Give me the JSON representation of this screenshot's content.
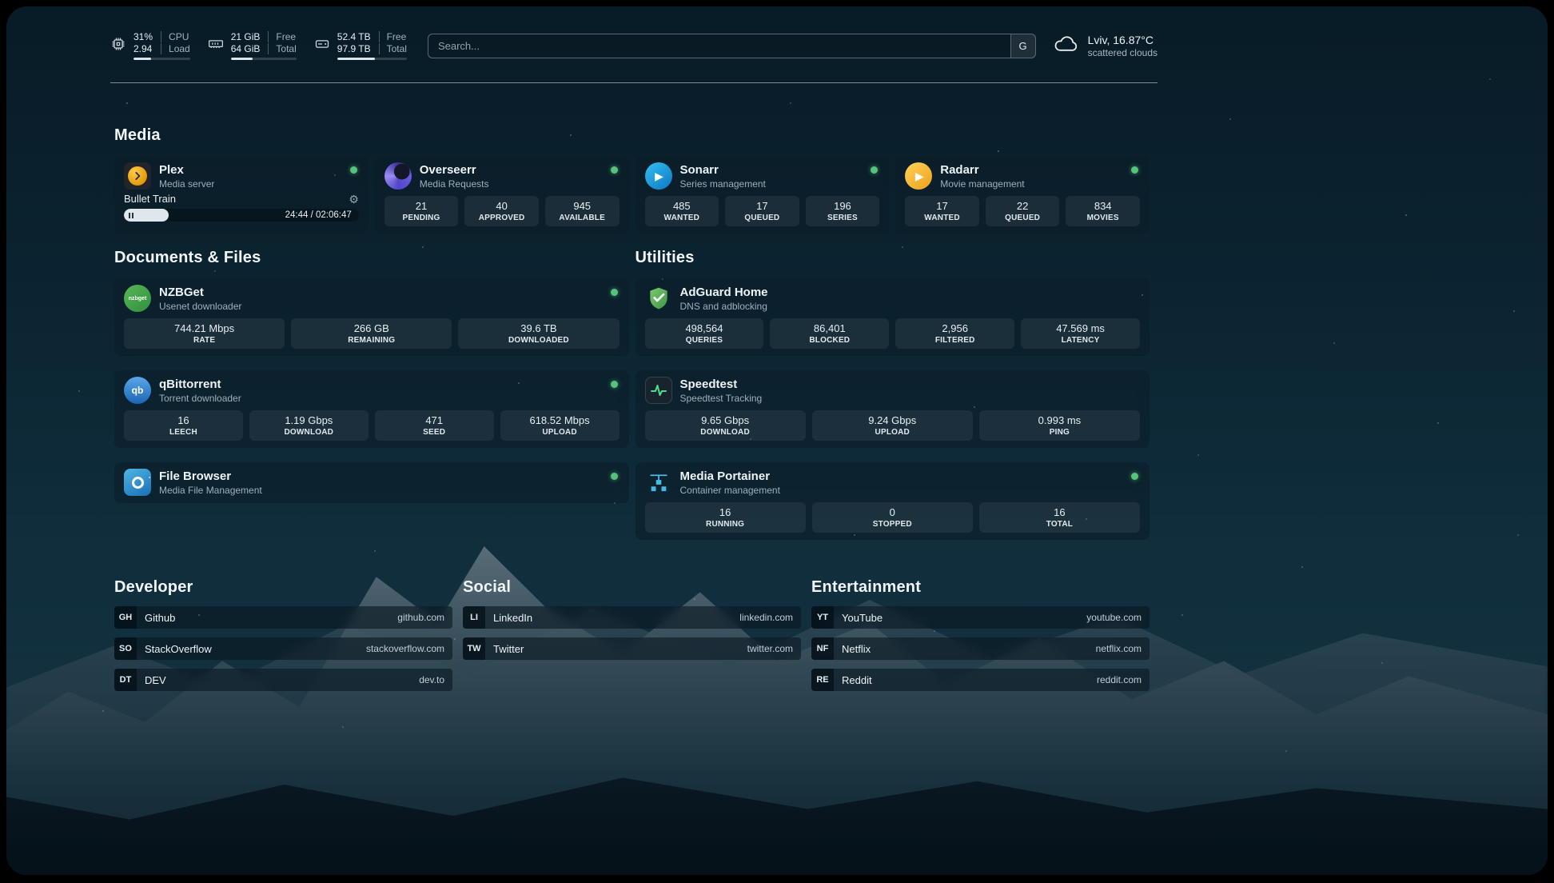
{
  "colors": {
    "online_green": "#57c279",
    "accent_blue": "#35bdf4"
  },
  "icons": {
    "topbar": [
      "cpu-icon",
      "ram-icon",
      "disk-icon",
      "search-engine-icon",
      "cloud-icon"
    ],
    "apps": [
      "plex-icon",
      "overseerr-icon",
      "sonarr-icon",
      "radarr-icon",
      "nzbget-icon",
      "qbittorrent-icon",
      "filebrowser-icon",
      "adguard-icon",
      "speedtest-icon",
      "portainer-icon"
    ],
    "misc": [
      "gear-icon",
      "pause-icon",
      "status-dot"
    ]
  },
  "topbar": {
    "cpu": {
      "value1": "31%",
      "label1": "CPU",
      "value2": "2.94",
      "label2": "Load",
      "progress": 31
    },
    "memory": {
      "value1": "21 GiB",
      "label1": "Free",
      "value2": "64 GiB",
      "label2": "Total",
      "progress": 33
    },
    "disk": {
      "value1": "52.4 TB",
      "label1": "Free",
      "value2": "97.9 TB",
      "label2": "Total",
      "progress": 54
    },
    "search": {
      "placeholder": "Search...",
      "engine_button": "G"
    },
    "weather": {
      "location": "Lviv, 16.87°C",
      "condition": "scattered clouds"
    }
  },
  "sections": {
    "media": {
      "title": "Media",
      "plex": {
        "name": "Plex",
        "subtitle": "Media server",
        "online": true,
        "now_playing": "Bullet Train",
        "time": "24:44 / 02:06:47",
        "progress": 19
      },
      "apps": [
        {
          "name": "Overseerr",
          "subtitle": "Media Requests",
          "online": true,
          "stats": [
            {
              "value": "21",
              "label": "PENDING"
            },
            {
              "value": "40",
              "label": "APPROVED"
            },
            {
              "value": "945",
              "label": "AVAILABLE"
            }
          ]
        },
        {
          "name": "Sonarr",
          "subtitle": "Series management",
          "online": true,
          "stats": [
            {
              "value": "485",
              "label": "WANTED"
            },
            {
              "value": "17",
              "label": "QUEUED"
            },
            {
              "value": "196",
              "label": "SERIES"
            }
          ]
        },
        {
          "name": "Radarr",
          "subtitle": "Movie management",
          "online": true,
          "stats": [
            {
              "value": "17",
              "label": "WANTED"
            },
            {
              "value": "22",
              "label": "QUEUED"
            },
            {
              "value": "834",
              "label": "MOVIES"
            }
          ]
        }
      ]
    },
    "documents": {
      "title": "Documents & Files",
      "apps": [
        {
          "name": "NZBGet",
          "subtitle": "Usenet downloader",
          "online": true,
          "stats": [
            {
              "value": "744.21 Mbps",
              "label": "RATE"
            },
            {
              "value": "266 GB",
              "label": "REMAINING"
            },
            {
              "value": "39.6 TB",
              "label": "DOWNLOADED"
            }
          ]
        },
        {
          "name": "qBittorrent",
          "subtitle": "Torrent downloader",
          "online": true,
          "stats": [
            {
              "value": "16",
              "label": "LEECH"
            },
            {
              "value": "1.19 Gbps",
              "label": "DOWNLOAD"
            },
            {
              "value": "471",
              "label": "SEED"
            },
            {
              "value": "618.52 Mbps",
              "label": "UPLOAD"
            }
          ]
        },
        {
          "name": "File Browser",
          "subtitle": "Media File Management",
          "online": true,
          "stats": []
        }
      ]
    },
    "utilities": {
      "title": "Utilities",
      "apps": [
        {
          "name": "AdGuard Home",
          "subtitle": "DNS and adblocking",
          "online": false,
          "stats": [
            {
              "value": "498,564",
              "label": "QUERIES"
            },
            {
              "value": "86,401",
              "label": "BLOCKED"
            },
            {
              "value": "2,956",
              "label": "FILTERED"
            },
            {
              "value": "47.569 ms",
              "label": "LATENCY"
            }
          ]
        },
        {
          "name": "Speedtest",
          "subtitle": "Speedtest Tracking",
          "online": false,
          "stats": [
            {
              "value": "9.65 Gbps",
              "label": "DOWNLOAD"
            },
            {
              "value": "9.24 Gbps",
              "label": "UPLOAD"
            },
            {
              "value": "0.993 ms",
              "label": "PING"
            }
          ]
        },
        {
          "name": "Media Portainer",
          "subtitle": "Container management",
          "online": true,
          "stats": [
            {
              "value": "16",
              "label": "RUNNING"
            },
            {
              "value": "0",
              "label": "STOPPED"
            },
            {
              "value": "16",
              "label": "TOTAL"
            }
          ]
        }
      ]
    },
    "bookmarks": [
      {
        "title": "Developer",
        "items": [
          {
            "abbr": "GH",
            "name": "Github",
            "url": "github.com"
          },
          {
            "abbr": "SO",
            "name": "StackOverflow",
            "url": "stackoverflow.com"
          },
          {
            "abbr": "DT",
            "name": "DEV",
            "url": "dev.to"
          }
        ]
      },
      {
        "title": "Social",
        "items": [
          {
            "abbr": "LI",
            "name": "LinkedIn",
            "url": "linkedin.com"
          },
          {
            "abbr": "TW",
            "name": "Twitter",
            "url": "twitter.com"
          }
        ]
      },
      {
        "title": "Entertainment",
        "items": [
          {
            "abbr": "YT",
            "name": "YouTube",
            "url": "youtube.com"
          },
          {
            "abbr": "NF",
            "name": "Netflix",
            "url": "netflix.com"
          },
          {
            "abbr": "RE",
            "name": "Reddit",
            "url": "reddit.com"
          }
        ]
      }
    ]
  }
}
